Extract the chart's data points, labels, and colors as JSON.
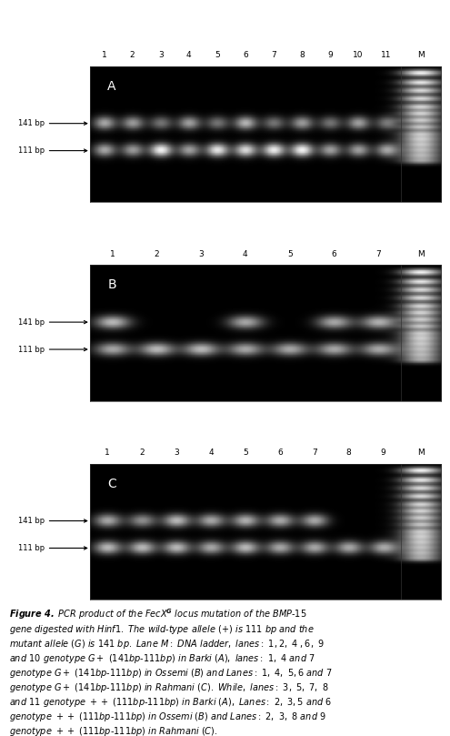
{
  "fig_width": 4.95,
  "fig_height": 8.09,
  "bg_color": "#ffffff",
  "gel_bg": "#0d0d0d",
  "panels": [
    {
      "label": "A",
      "lane_labels": [
        "1",
        "2",
        "3",
        "4",
        "5",
        "6",
        "7",
        "8",
        "9",
        "10",
        "11",
        "M"
      ],
      "num_sample_lanes": 11,
      "upper_intensity": [
        0.65,
        0.6,
        0.45,
        0.62,
        0.45,
        0.7,
        0.45,
        0.6,
        0.45,
        0.62,
        0.45
      ],
      "lower_intensity": [
        0.65,
        0.6,
        0.95,
        0.62,
        0.9,
        0.85,
        0.92,
        0.95,
        0.62,
        0.62,
        0.62
      ],
      "has_141_band": [
        true,
        true,
        true,
        true,
        true,
        true,
        true,
        true,
        true,
        true,
        true
      ],
      "has_111_band": [
        true,
        true,
        true,
        true,
        true,
        true,
        true,
        true,
        true,
        true,
        true
      ]
    },
    {
      "label": "B",
      "lane_labels": [
        "1",
        "2",
        "3",
        "4",
        "5",
        "6",
        "7",
        "M"
      ],
      "num_sample_lanes": 7,
      "upper_intensity": [
        0.72,
        0.0,
        0.0,
        0.65,
        0.0,
        0.65,
        0.68
      ],
      "lower_intensity": [
        0.65,
        0.72,
        0.72,
        0.65,
        0.65,
        0.65,
        0.65
      ],
      "has_141_band": [
        true,
        false,
        false,
        true,
        false,
        true,
        true
      ],
      "has_111_band": [
        true,
        true,
        true,
        true,
        true,
        true,
        true
      ]
    },
    {
      "label": "C",
      "lane_labels": [
        "1",
        "2",
        "3",
        "4",
        "5",
        "6",
        "7",
        "8",
        "9",
        "M"
      ],
      "num_sample_lanes": 9,
      "upper_intensity": [
        0.65,
        0.55,
        0.72,
        0.65,
        0.68,
        0.65,
        0.65,
        0.0,
        0.0
      ],
      "lower_intensity": [
        0.72,
        0.72,
        0.72,
        0.65,
        0.72,
        0.65,
        0.65,
        0.65,
        0.65
      ],
      "has_141_band": [
        true,
        true,
        true,
        true,
        true,
        true,
        true,
        false,
        false
      ],
      "has_111_band": [
        true,
        true,
        true,
        true,
        true,
        true,
        true,
        true,
        true
      ]
    }
  ]
}
